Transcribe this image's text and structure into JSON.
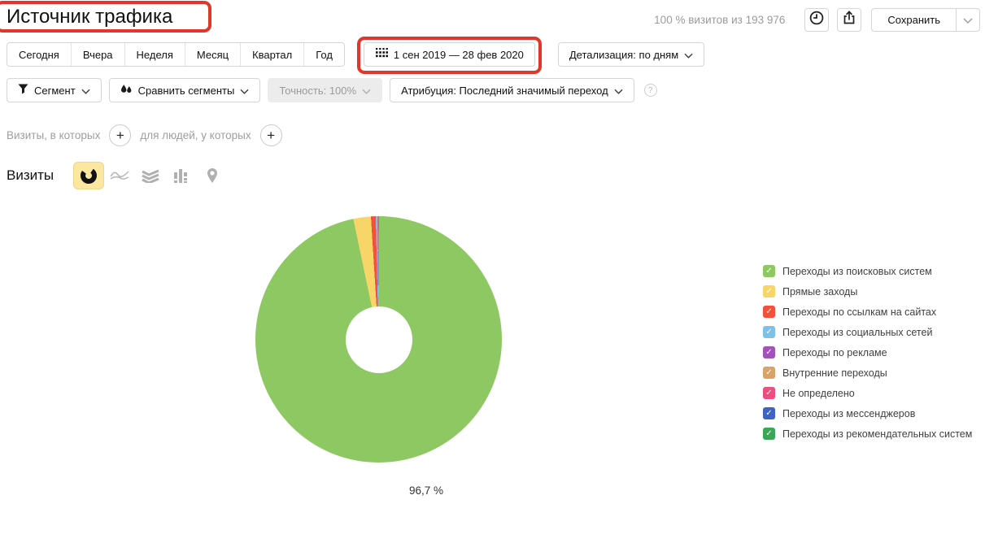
{
  "header": {
    "title": "Источник трафика",
    "visits_info": "100 % визитов из 193 976",
    "save_label": "Сохранить"
  },
  "toolbar": {
    "period_tabs": [
      "Сегодня",
      "Вчера",
      "Неделя",
      "Месяц",
      "Квартал",
      "Год"
    ],
    "date_range": "1 сен 2019 — 28 фев 2020",
    "detalization": "Детализация: по дням"
  },
  "segments": {
    "segment_label": "Сегмент",
    "compare_label": "Сравнить сегменты",
    "accuracy_label": "Точность: 100%",
    "attribution_label": "Атрибуция: Последний значимый переход",
    "help_glyph": "?"
  },
  "filters": {
    "visits_condition_label": "Визиты, в которых",
    "people_condition_label": "для людей, у которых",
    "add_glyph": "+"
  },
  "metric": {
    "label": "Визиты",
    "chart_types": [
      {
        "icon": "donut-chart-icon",
        "selected": true
      },
      {
        "icon": "line-chart-icon",
        "selected": false
      },
      {
        "icon": "stacked-area-icon",
        "selected": false
      },
      {
        "icon": "bar-chart-icon",
        "selected": false
      },
      {
        "icon": "map-pin-icon",
        "selected": false
      }
    ]
  },
  "chart_data": {
    "type": "pie",
    "title": "Источник трафика",
    "donut": true,
    "start_angle_deg": 0,
    "direction": "clockwise",
    "visible_label": "96,7 %",
    "legend_position": "right",
    "series": [
      {
        "name": "Переходы из поисковых систем",
        "value": 96.7,
        "color": "#8dc863"
      },
      {
        "name": "Прямые заходы",
        "value": 2.3,
        "color": "#f8d568"
      },
      {
        "name": "Переходы по ссылкам на сайтах",
        "value": 0.62,
        "color": "#f4503a"
      },
      {
        "name": "Переходы из социальных сетей",
        "value": 0.2,
        "color": "#7fc0e8"
      },
      {
        "name": "Переходы по рекламе",
        "value": 0.07,
        "color": "#a351bb"
      },
      {
        "name": "Внутренние переходы",
        "value": 0.05,
        "color": "#d8a369"
      },
      {
        "name": "Не определено",
        "value": 0.03,
        "color": "#ea4f7d"
      },
      {
        "name": "Переходы из мессенджеров",
        "value": 0.02,
        "color": "#3d64c2"
      },
      {
        "name": "Переходы из рекомендательных систем",
        "value": 0.01,
        "color": "#3ba658"
      }
    ]
  },
  "annotations": {
    "highlight_color": "#e2362a",
    "highlighted_elements": [
      "page-title",
      "date-range-button"
    ]
  }
}
